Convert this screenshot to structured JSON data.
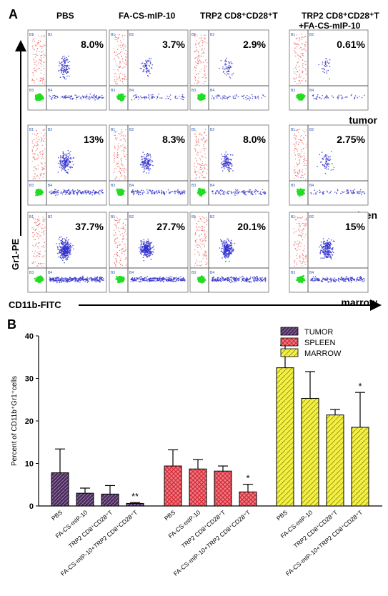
{
  "panel_a": {
    "label": "A",
    "columns": [
      "PBS",
      "FA-CS-mIP-10",
      "TRP2 CD8⁺CD28⁺T",
      "TRP2 CD8⁺CD28⁺T",
      "+FA-CS-mIP-10"
    ],
    "rows": [
      {
        "name": "tumor",
        "percents": [
          "8.0%",
          "3.7%",
          "2.9%",
          "0.61%"
        ],
        "density": [
          0.25,
          0.12,
          0.1,
          0.03
        ]
      },
      {
        "name": "spleen",
        "percents": [
          "13%",
          "8.3%",
          "8.0%",
          "2.75%"
        ],
        "density": [
          0.45,
          0.32,
          0.3,
          0.12
        ]
      },
      {
        "name": "marrow",
        "percents": [
          "37.7%",
          "27.7%",
          "20.1%",
          "15%"
        ],
        "density": [
          0.95,
          0.8,
          0.7,
          0.55
        ]
      }
    ],
    "quadrant_labels": [
      "B1",
      "B2",
      "B3",
      "B4"
    ],
    "y_axis_label": "Gr1-PE",
    "x_axis_label": "CD11b-FITC",
    "dot_colors": {
      "gated": "#3333cc",
      "upper_left": "#ee6666",
      "lower_left": "#22dd22"
    }
  },
  "panel_b": {
    "label": "B",
    "chart_data": {
      "type": "bar",
      "ylabel": "Percent of CD11b⁺Gr1⁺cells",
      "ylim": [
        0,
        40
      ],
      "yticks": [
        "0",
        "10",
        "20",
        "30",
        "40"
      ],
      "categories": [
        "PBS",
        "FA-CS-mIP-10",
        "TRP2 CD8⁺CD28⁺T",
        "FA-CS-mIP-10+TRP2 CD8⁺CD28⁺T"
      ],
      "legend_position": "top-right",
      "series": [
        {
          "name": "TUMOR",
          "color": "#4a2a5a",
          "values": [
            7.8,
            3.0,
            2.8,
            0.6
          ],
          "errors": [
            5.6,
            1.2,
            2.0,
            0.2
          ],
          "significance": [
            "",
            "",
            "",
            "**"
          ]
        },
        {
          "name": "SPLEEN",
          "color": "#e85a60",
          "values": [
            9.4,
            8.7,
            8.2,
            3.3
          ],
          "errors": [
            3.8,
            2.2,
            1.2,
            1.8
          ],
          "significance": [
            "",
            "",
            "",
            "*"
          ]
        },
        {
          "name": "MARROW",
          "color": "#f2ee30",
          "values": [
            32.5,
            25.3,
            21.4,
            18.5
          ],
          "errors": [
            5.3,
            6.3,
            1.3,
            8.2
          ],
          "significance": [
            "",
            "",
            "",
            "*"
          ]
        }
      ]
    }
  }
}
